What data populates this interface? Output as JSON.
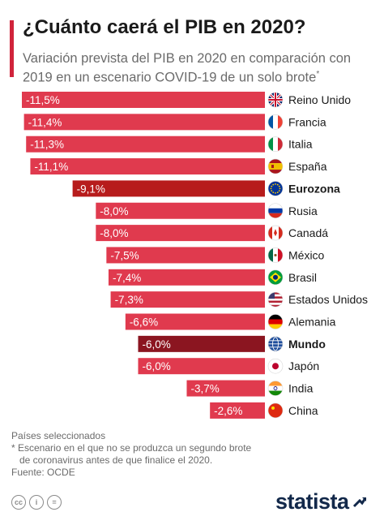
{
  "header": {
    "title": "¿Cuánto caerá el PIB en 2020?",
    "subtitle": "Variación prevista del PIB en 2020 en comparación con 2019 en un escenario COVID-19 de un solo brote",
    "subtitle_mark": "*"
  },
  "chart_data": {
    "type": "bar",
    "orientation": "horizontal",
    "title": "¿Cuánto caerá el PIB en 2020?",
    "unit": "%",
    "categories": [
      "Reino Unido",
      "Francia",
      "Italia",
      "España",
      "Eurozona",
      "Rusia",
      "Canadá",
      "México",
      "Brasil",
      "Estados Unidos",
      "Alemania",
      "Mundo",
      "Japón",
      "India",
      "China"
    ],
    "values": [
      -11.5,
      -11.4,
      -11.3,
      -11.1,
      -9.1,
      -8.0,
      -8.0,
      -7.5,
      -7.4,
      -7.3,
      -6.6,
      -6.0,
      -6.0,
      -3.7,
      -2.6
    ],
    "value_labels": [
      "-11,5%",
      "-11,4%",
      "-11,3%",
      "-11,1%",
      "-9,1%",
      "-8,0%",
      "-8,0%",
      "-7,5%",
      "-7,4%",
      "-7,3%",
      "-6,6%",
      "-6,0%",
      "-6,0%",
      "-3,7%",
      "-2,6%"
    ],
    "highlight": [
      "Eurozona",
      "Mundo"
    ],
    "flags": [
      "uk-flag-icon",
      "france-flag-icon",
      "italy-flag-icon",
      "spain-flag-icon",
      "eu-flag-icon",
      "russia-flag-icon",
      "canada-flag-icon",
      "mexico-flag-icon",
      "brazil-flag-icon",
      "usa-flag-icon",
      "germany-flag-icon",
      "world-globe-icon",
      "japan-flag-icon",
      "india-flag-icon",
      "china-flag-icon"
    ],
    "colors": {
      "bar": "#e03a4e",
      "eurozona": "#b71c1c",
      "mundo": "#8b1520"
    },
    "xlim": [
      -11.5,
      0
    ]
  },
  "footer": {
    "note1": "Países seleccionados",
    "note2": "* Escenario en el que no se produzca un segundo brote",
    "note3": "de coronavirus antes de que finalice el 2020.",
    "source": "Fuente: OCDE",
    "brand": "statista",
    "cc_icons": [
      "cc-icon",
      "by-icon",
      "nd-icon"
    ]
  }
}
